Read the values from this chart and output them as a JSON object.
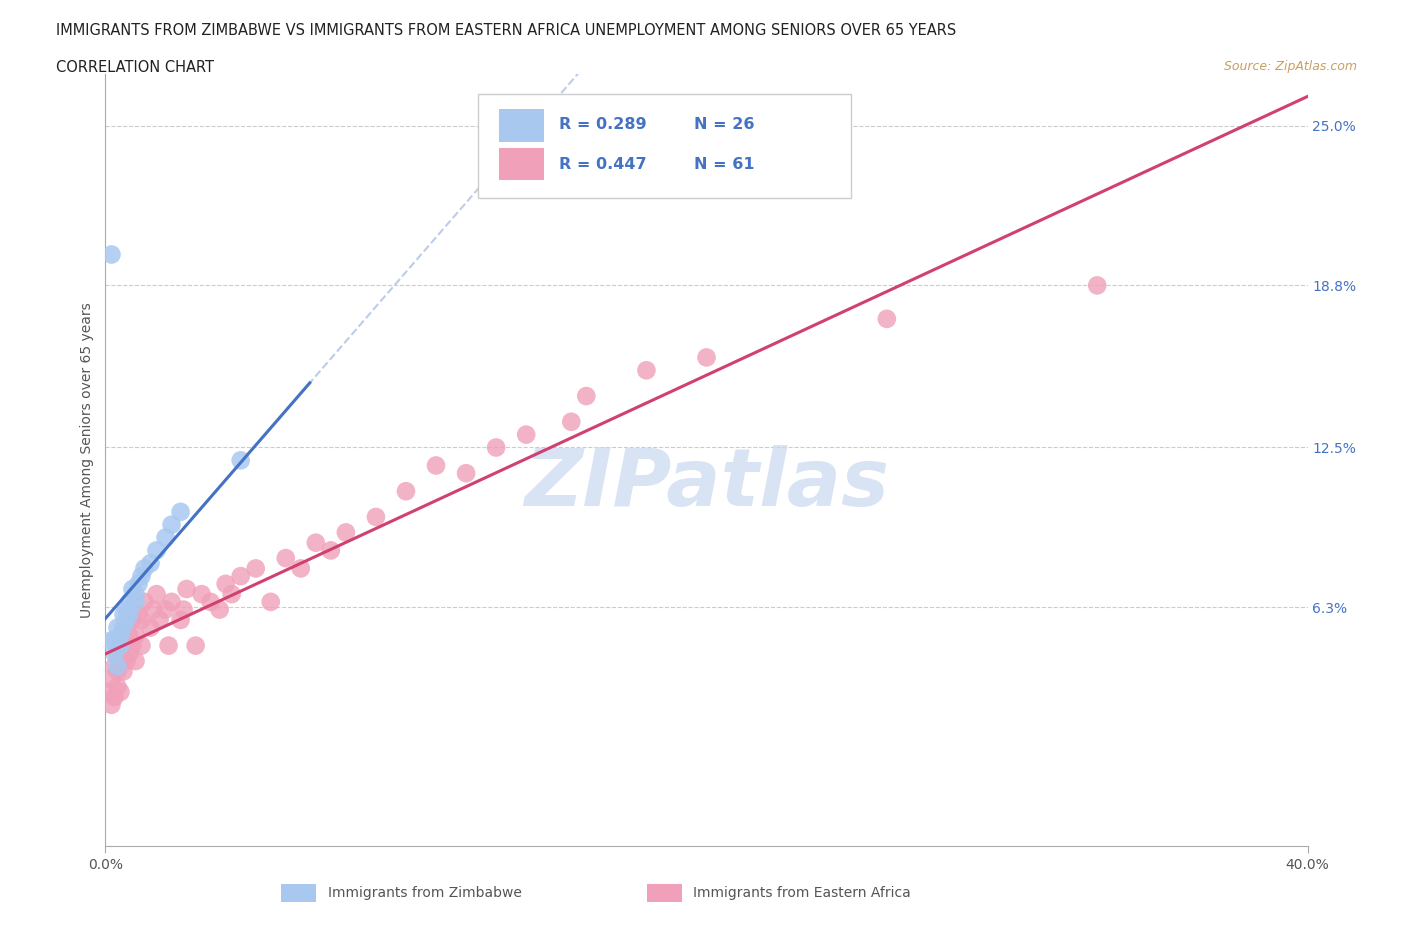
{
  "title_line1": "IMMIGRANTS FROM ZIMBABWE VS IMMIGRANTS FROM EASTERN AFRICA UNEMPLOYMENT AMONG SENIORS OVER 65 YEARS",
  "title_line2": "CORRELATION CHART",
  "source_text": "Source: ZipAtlas.com",
  "ylabel": "Unemployment Among Seniors over 65 years",
  "xlim": [
    0.0,
    0.4
  ],
  "ylim": [
    -0.03,
    0.27
  ],
  "ytick_vals_right": [
    0.063,
    0.125,
    0.188,
    0.25
  ],
  "ytick_labels_right": [
    "6.3%",
    "12.5%",
    "18.8%",
    "25.0%"
  ],
  "color_zimbabwe": "#a8c8f0",
  "color_eastern": "#f0a0b8",
  "color_line_zimbabwe": "#4472c4",
  "color_line_eastern": "#d04070",
  "watermark_text": "ZIPatlas",
  "watermark_color": "#c8d8f0",
  "legend_label1": "Immigrants from Zimbabwe",
  "legend_label2": "Immigrants from Eastern Africa",
  "legend_r1_r": "R = 0.289",
  "legend_r1_n": "N = 26",
  "legend_r2_r": "R = 0.447",
  "legend_r2_n": "N = 61",
  "zimbabwe_x": [
    0.002,
    0.003,
    0.003,
    0.004,
    0.004,
    0.005,
    0.005,
    0.006,
    0.006,
    0.007,
    0.007,
    0.008,
    0.008,
    0.009,
    0.01,
    0.01,
    0.011,
    0.012,
    0.013,
    0.015,
    0.017,
    0.02,
    0.022,
    0.025,
    0.045,
    0.002
  ],
  "zimbabwe_y": [
    0.05,
    0.045,
    0.05,
    0.04,
    0.055,
    0.048,
    0.052,
    0.055,
    0.06,
    0.058,
    0.062,
    0.06,
    0.065,
    0.07,
    0.065,
    0.068,
    0.072,
    0.075,
    0.078,
    0.08,
    0.085,
    0.09,
    0.095,
    0.1,
    0.12,
    0.2
  ],
  "eastern_x": [
    0.001,
    0.002,
    0.002,
    0.003,
    0.003,
    0.004,
    0.004,
    0.004,
    0.005,
    0.005,
    0.005,
    0.006,
    0.006,
    0.007,
    0.007,
    0.008,
    0.008,
    0.009,
    0.009,
    0.01,
    0.01,
    0.011,
    0.012,
    0.012,
    0.013,
    0.015,
    0.016,
    0.017,
    0.018,
    0.02,
    0.021,
    0.022,
    0.025,
    0.026,
    0.027,
    0.03,
    0.032,
    0.035,
    0.038,
    0.04,
    0.042,
    0.045,
    0.05,
    0.055,
    0.06,
    0.065,
    0.07,
    0.075,
    0.08,
    0.09,
    0.1,
    0.11,
    0.12,
    0.13,
    0.14,
    0.155,
    0.16,
    0.18,
    0.2,
    0.26,
    0.33
  ],
  "eastern_y": [
    0.03,
    0.025,
    0.035,
    0.028,
    0.04,
    0.032,
    0.038,
    0.045,
    0.03,
    0.042,
    0.05,
    0.038,
    0.048,
    0.042,
    0.055,
    0.045,
    0.052,
    0.048,
    0.058,
    0.042,
    0.052,
    0.06,
    0.048,
    0.058,
    0.065,
    0.055,
    0.062,
    0.068,
    0.058,
    0.062,
    0.048,
    0.065,
    0.058,
    0.062,
    0.07,
    0.048,
    0.068,
    0.065,
    0.062,
    0.072,
    0.068,
    0.075,
    0.078,
    0.065,
    0.082,
    0.078,
    0.088,
    0.085,
    0.092,
    0.098,
    0.108,
    0.118,
    0.115,
    0.125,
    0.13,
    0.135,
    0.145,
    0.155,
    0.16,
    0.175,
    0.188
  ],
  "zim_trend_x0": 0.0,
  "zim_trend_x1": 0.068,
  "east_trend_x0": 0.0,
  "east_trend_x1": 0.4
}
